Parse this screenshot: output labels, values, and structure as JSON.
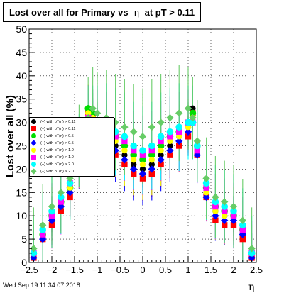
{
  "chart_data": {
    "type": "scatter",
    "title": "Lost over all for Primary vs η at pT > 0.11",
    "title_parts": {
      "prefix": "Lost over all for Primary vs",
      "symbol": "η",
      "suffix": "at pT > 0.11"
    },
    "xlabel": "η",
    "ylabel": "Lost over all (%)",
    "xlim": [
      -2.5,
      2.5
    ],
    "ylim": [
      0,
      50
    ],
    "x_ticks": [
      "−2.5",
      "−2",
      "−1.5",
      "−1",
      "−0.5",
      "0",
      "0.5",
      "1",
      "1.5",
      "2",
      "2.5"
    ],
    "y_ticks": [
      "0",
      "5",
      "10",
      "15",
      "20",
      "25",
      "30",
      "35",
      "40",
      "45",
      "50"
    ],
    "grid": true,
    "legend_position": "left",
    "x": [
      -2.4,
      -2.2,
      -2.0,
      -1.8,
      -1.6,
      -1.4,
      -1.2,
      -1.1,
      -1.0,
      -0.8,
      -0.6,
      -0.4,
      -0.2,
      0.0,
      0.2,
      0.4,
      0.6,
      0.8,
      1.0,
      1.1,
      1.2,
      1.4,
      1.6,
      1.8,
      2.0,
      2.2,
      2.4
    ],
    "series": [
      {
        "name": "(+) with pT(η) > 0.11",
        "color": "#000000",
        "values": [
          1,
          5,
          9,
          12,
          15,
          22,
          33,
          32,
          29,
          27,
          25,
          23,
          21,
          20,
          21,
          23,
          25,
          27,
          29,
          33,
          24,
          15,
          11,
          10,
          9,
          6,
          1
        ]
      },
      {
        "name": "(−) with pT(η) > 0.11",
        "color": "#ff0000",
        "values": [
          1,
          5,
          8,
          11,
          14,
          20,
          32,
          31,
          27,
          25,
          23,
          21,
          19,
          18,
          19,
          21,
          23,
          25,
          27,
          32,
          23,
          14,
          9,
          8,
          8,
          5,
          1
        ]
      },
      {
        "name": "(+) with pT(η) > 0.5",
        "color": "#00dd00",
        "values": [
          2,
          6,
          10,
          13,
          16,
          23,
          33,
          32,
          30,
          28,
          27,
          25,
          23,
          22,
          23,
          25,
          27,
          28,
          30,
          32,
          25,
          16,
          12,
          11,
          10,
          7,
          2
        ]
      },
      {
        "name": "(−) with pT(η) > 0.5",
        "color": "#0000ff",
        "values": [
          1,
          5,
          9,
          12,
          15,
          21,
          31,
          30,
          28,
          26,
          24,
          22,
          20,
          19,
          20,
          22,
          24,
          26,
          28,
          30,
          23,
          14,
          10,
          9,
          9,
          6,
          1
        ]
      },
      {
        "name": "(+) with pT(η) > 1.0",
        "color": "#ffff00",
        "values": [
          2,
          6,
          10,
          13,
          16,
          22,
          32,
          31,
          29,
          27,
          26,
          24,
          22,
          21,
          22,
          24,
          26,
          27,
          29,
          31,
          24,
          15,
          11,
          10,
          10,
          7,
          2
        ]
      },
      {
        "name": "(−) with pT(η) > 1.0",
        "color": "#ff00ff",
        "values": [
          2,
          6,
          10,
          13,
          17,
          23,
          31,
          30,
          30,
          28,
          27,
          26,
          24,
          23,
          24,
          26,
          27,
          28,
          30,
          30,
          24,
          16,
          12,
          11,
          10,
          7,
          2
        ]
      },
      {
        "name": "(+) with pT(η) > 2.0",
        "color": "#00ffff",
        "values": [
          2,
          7,
          11,
          14,
          17,
          24,
          30,
          30,
          30,
          29,
          28,
          27,
          25,
          24,
          25,
          27,
          28,
          29,
          30,
          30,
          25,
          17,
          13,
          12,
          11,
          8,
          2
        ]
      },
      {
        "name": "(−) with pT(η) > 2.0",
        "color": "#66cc66",
        "values": [
          3,
          8,
          12,
          15,
          18,
          25,
          31,
          33,
          32,
          31,
          30,
          29,
          28,
          27,
          29,
          30,
          31,
          32,
          33,
          31,
          26,
          18,
          14,
          13,
          12,
          9,
          3
        ]
      }
    ]
  },
  "footer": {
    "timestamp": "Wed Sep 19 11:34:07 2018"
  }
}
